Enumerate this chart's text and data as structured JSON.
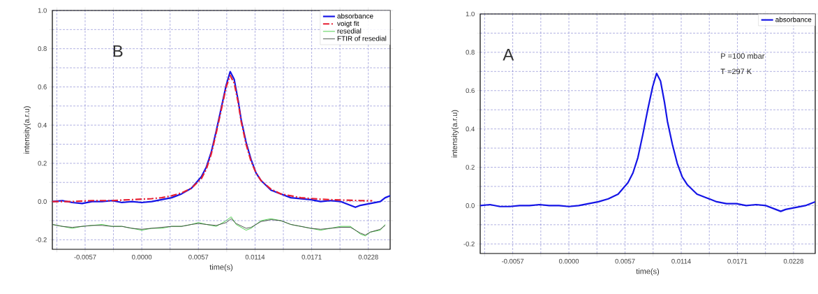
{
  "chart_data": [
    {
      "type": "line",
      "xlabel": "time(s)",
      "ylabel": "intensity(a.r.u)",
      "annotations": [
        "B"
      ],
      "xlim": [
        -0.009,
        0.025
      ],
      "ylim": [
        -0.25,
        1.0
      ],
      "xticks": [
        {
          "value": -0.00855,
          "label": null
        },
        -0.0057,
        {
          "value": -0.00285,
          "label": null
        },
        {
          "value": 0,
          "label": "0.0000"
        },
        {
          "value": 0.00285,
          "label": null
        },
        0.0057,
        {
          "value": 0.00855,
          "label": null
        },
        0.0114,
        {
          "value": 0.01425,
          "label": null
        },
        0.0171,
        {
          "value": 0.01995,
          "label": null
        },
        0.0228
      ],
      "yticks": [
        -0.2,
        {
          "value": -0.1,
          "label": null
        },
        {
          "value": 0,
          "label": "0.0"
        },
        {
          "value": 0.1,
          "label": null
        },
        0.2,
        {
          "value": 0.3,
          "label": null
        },
        0.4,
        {
          "value": 0.5,
          "label": null
        },
        0.6,
        {
          "value": 0.7,
          "label": null
        },
        0.8,
        {
          "value": 0.9,
          "label": null
        },
        {
          "value": 1,
          "label": "1.0"
        }
      ],
      "grid": true,
      "legend": "top right",
      "series": [
        {
          "name": "absorbance",
          "color": "#1414e6",
          "line_style": "solid",
          "x": [
            -0.009,
            -0.008,
            -0.007,
            -0.006,
            -0.005,
            -0.004,
            -0.003,
            -0.002,
            -0.001,
            0.0,
            0.001,
            0.002,
            0.003,
            0.004,
            0.005,
            0.006,
            0.0065,
            0.007,
            0.0075,
            0.008,
            0.0085,
            0.0089,
            0.0093,
            0.0097,
            0.01,
            0.0105,
            0.011,
            0.0115,
            0.012,
            0.013,
            0.014,
            0.015,
            0.016,
            0.017,
            0.018,
            0.019,
            0.02,
            0.021,
            0.0215,
            0.022,
            0.023,
            0.024,
            0.0245,
            0.025
          ],
          "values": [
            0.0,
            0.005,
            -0.005,
            -0.01,
            0.0,
            0.0,
            0.005,
            -0.005,
            0.0,
            -0.005,
            0.0,
            0.01,
            0.02,
            0.04,
            0.07,
            0.13,
            0.18,
            0.26,
            0.37,
            0.49,
            0.61,
            0.68,
            0.64,
            0.53,
            0.43,
            0.31,
            0.22,
            0.15,
            0.11,
            0.06,
            0.04,
            0.02,
            0.015,
            0.01,
            0.0,
            0.005,
            0.0,
            -0.02,
            -0.03,
            -0.02,
            -0.01,
            0.0,
            0.02,
            0.03
          ]
        },
        {
          "name": "voigt fit",
          "color": "#e61e32",
          "line_style": "dashed",
          "x": [
            -0.009,
            -0.007,
            -0.005,
            -0.003,
            -0.001,
            0.001,
            0.002,
            0.003,
            0.004,
            0.005,
            0.006,
            0.0065,
            0.007,
            0.0075,
            0.008,
            0.0085,
            0.0089,
            0.0093,
            0.0097,
            0.01,
            0.0105,
            0.011,
            0.0115,
            0.012,
            0.013,
            0.014,
            0.015,
            0.016,
            0.018,
            0.02,
            0.022,
            0.0232
          ],
          "values": [
            0.0,
            0.0,
            0.005,
            0.005,
            0.01,
            0.015,
            0.02,
            0.03,
            0.045,
            0.07,
            0.12,
            0.17,
            0.25,
            0.36,
            0.48,
            0.6,
            0.66,
            0.62,
            0.52,
            0.42,
            0.3,
            0.21,
            0.15,
            0.11,
            0.065,
            0.04,
            0.03,
            0.02,
            0.012,
            0.008,
            0.005,
            0.004
          ]
        },
        {
          "name": "resedial",
          "color": "#3cc83c",
          "line_style": "solid",
          "x": [
            -0.009,
            -0.008,
            -0.007,
            -0.006,
            -0.005,
            -0.004,
            -0.003,
            -0.002,
            -0.001,
            0.0,
            0.001,
            0.002,
            0.003,
            0.004,
            0.005,
            0.0057,
            0.0065,
            0.0075,
            0.0085,
            0.009,
            0.0095,
            0.0105,
            0.011,
            0.012,
            0.013,
            0.014,
            0.015,
            0.016,
            0.017,
            0.018,
            0.019,
            0.02,
            0.021,
            0.022,
            0.0225,
            0.023,
            0.024,
            0.0245
          ],
          "values": [
            -0.12,
            -0.13,
            -0.14,
            -0.13,
            -0.125,
            -0.12,
            -0.13,
            -0.13,
            -0.14,
            -0.15,
            -0.14,
            -0.14,
            -0.13,
            -0.13,
            -0.12,
            -0.11,
            -0.12,
            -0.13,
            -0.1,
            -0.08,
            -0.12,
            -0.15,
            -0.14,
            -0.1,
            -0.09,
            -0.1,
            -0.12,
            -0.13,
            -0.14,
            -0.15,
            -0.14,
            -0.13,
            -0.13,
            -0.17,
            -0.18,
            -0.16,
            -0.15,
            -0.12
          ]
        },
        {
          "name": "FTIR of resedial",
          "color": "#3c463c",
          "line_style": "solid",
          "x": [
            -0.009,
            -0.008,
            -0.007,
            -0.006,
            -0.005,
            -0.004,
            -0.003,
            -0.002,
            -0.001,
            0.0,
            0.001,
            0.002,
            0.003,
            0.004,
            0.005,
            0.0057,
            0.0065,
            0.0075,
            0.0085,
            0.009,
            0.0095,
            0.0105,
            0.011,
            0.012,
            0.013,
            0.014,
            0.015,
            0.016,
            0.017,
            0.018,
            0.019,
            0.02,
            0.021,
            0.022,
            0.0225,
            0.023,
            0.024,
            0.0245
          ],
          "values": [
            -0.12,
            -0.13,
            -0.135,
            -0.13,
            -0.125,
            -0.125,
            -0.13,
            -0.13,
            -0.14,
            -0.145,
            -0.14,
            -0.135,
            -0.13,
            -0.13,
            -0.12,
            -0.115,
            -0.12,
            -0.125,
            -0.11,
            -0.09,
            -0.115,
            -0.14,
            -0.135,
            -0.105,
            -0.095,
            -0.1,
            -0.12,
            -0.13,
            -0.14,
            -0.145,
            -0.14,
            -0.135,
            -0.135,
            -0.165,
            -0.175,
            -0.16,
            -0.145,
            -0.125
          ]
        }
      ]
    },
    {
      "type": "line",
      "xlabel": "time(s)",
      "ylabel": "intensity(a.r.u)",
      "annotations": [
        "A",
        "P =100 mbar",
        "T =297 K"
      ],
      "xlim": [
        -0.009,
        0.025
      ],
      "ylim": [
        -0.25,
        1.0
      ],
      "xticks": [
        {
          "value": -0.00855,
          "label": null
        },
        -0.0057,
        {
          "value": -0.00285,
          "label": null
        },
        {
          "value": 0,
          "label": "0.0000"
        },
        {
          "value": 0.00285,
          "label": null
        },
        0.0057,
        {
          "value": 0.00855,
          "label": null
        },
        0.0114,
        {
          "value": 0.01425,
          "label": null
        },
        0.0171,
        {
          "value": 0.01995,
          "label": null
        },
        0.0228
      ],
      "yticks": [
        -0.2,
        {
          "value": -0.1,
          "label": null
        },
        {
          "value": 0,
          "label": "0.0"
        },
        {
          "value": 0.1,
          "label": null
        },
        0.2,
        {
          "value": 0.3,
          "label": null
        },
        0.4,
        {
          "value": 0.5,
          "label": null
        },
        0.6,
        {
          "value": 0.7,
          "label": null
        },
        0.8,
        {
          "value": 0.9,
          "label": null
        },
        {
          "value": 1,
          "label": "1.0"
        }
      ],
      "grid": true,
      "legend": "top right",
      "series": [
        {
          "name": "absorbance",
          "color": "#1414e6",
          "line_style": "solid",
          "x": [
            -0.009,
            -0.008,
            -0.007,
            -0.006,
            -0.005,
            -0.004,
            -0.003,
            -0.002,
            -0.001,
            0.0,
            0.001,
            0.002,
            0.003,
            0.004,
            0.005,
            0.006,
            0.0065,
            0.007,
            0.0075,
            0.008,
            0.0085,
            0.0089,
            0.0093,
            0.0097,
            0.01,
            0.0105,
            0.011,
            0.0115,
            0.012,
            0.013,
            0.014,
            0.015,
            0.016,
            0.017,
            0.018,
            0.019,
            0.02,
            0.021,
            0.0215,
            0.022,
            0.023,
            0.024,
            0.0245,
            0.025
          ],
          "values": [
            0.0,
            0.005,
            -0.005,
            -0.005,
            0.0,
            0.0,
            0.005,
            0.0,
            0.0,
            -0.005,
            0.0,
            0.01,
            0.02,
            0.035,
            0.06,
            0.12,
            0.17,
            0.25,
            0.37,
            0.5,
            0.62,
            0.69,
            0.65,
            0.54,
            0.44,
            0.32,
            0.22,
            0.15,
            0.11,
            0.06,
            0.04,
            0.02,
            0.01,
            0.01,
            0.0,
            0.005,
            0.0,
            -0.02,
            -0.03,
            -0.02,
            -0.01,
            0.0,
            0.01,
            0.02
          ]
        }
      ]
    }
  ]
}
